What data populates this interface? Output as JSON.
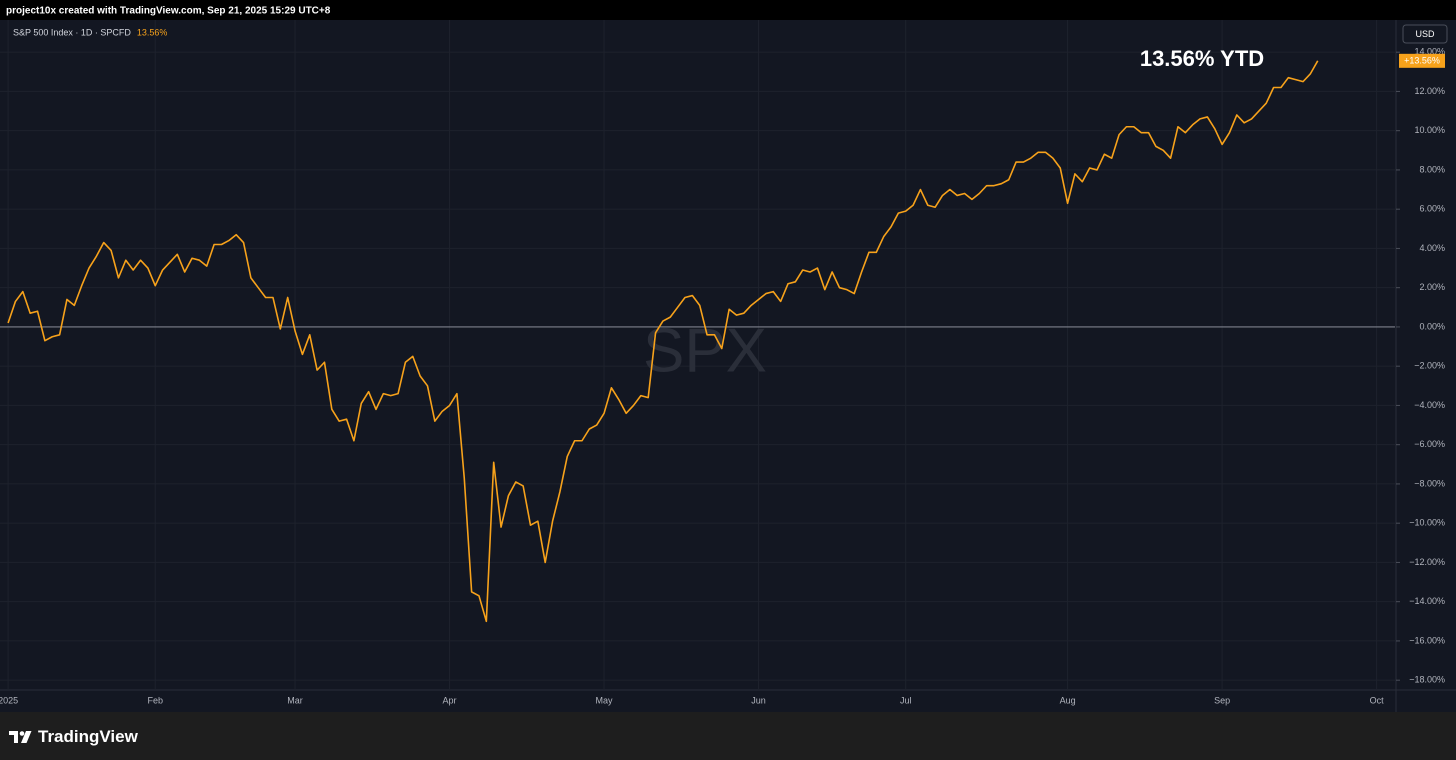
{
  "chart_data": {
    "type": "line",
    "header": "project10x created with TradingView.com, Sep 21, 2025 15:29 UTC+8",
    "legend_value": "13.56%",
    "annotation": "13.56% YTD",
    "watermark": "SPX",
    "currency": "USD",
    "brand": "TradingView",
    "baseline": 0,
    "grid": true,
    "x": [
      0,
      1,
      2,
      3,
      4,
      5,
      6,
      7,
      8,
      9,
      10,
      11,
      12,
      13,
      14,
      15,
      16,
      17,
      18,
      19,
      20,
      21,
      22,
      23,
      24,
      25,
      26,
      27,
      28,
      29,
      30,
      31,
      32,
      33,
      34,
      35,
      36,
      37,
      38,
      39,
      40,
      41,
      42,
      43,
      44,
      45,
      46,
      47,
      48,
      49,
      50,
      51,
      52,
      53,
      54,
      55,
      56,
      57,
      58,
      59,
      60,
      61,
      62,
      63,
      64,
      65,
      66,
      67,
      68,
      69,
      70,
      71,
      72,
      73,
      74,
      75,
      76,
      77,
      78,
      79,
      80,
      81,
      82,
      83,
      84,
      85,
      86,
      87,
      88,
      89,
      90,
      91,
      92,
      93,
      94,
      95,
      96,
      97,
      98,
      99,
      100,
      101,
      102,
      103,
      104,
      105,
      106,
      107,
      108,
      109,
      110,
      111,
      112,
      113,
      114,
      115,
      116,
      117,
      118,
      119,
      120,
      121,
      122,
      123,
      124,
      125,
      126,
      127,
      128,
      129,
      130,
      131,
      132,
      133,
      134,
      135,
      136,
      137,
      138,
      139,
      140,
      141,
      142,
      143,
      144,
      145,
      146,
      147,
      148,
      149,
      150,
      151,
      152,
      153,
      154,
      155,
      156,
      157,
      158,
      159,
      160,
      161,
      162,
      163,
      164,
      165,
      166,
      167,
      168,
      169,
      170,
      171,
      172,
      173,
      174,
      175,
      176,
      177,
      178
    ],
    "series": [
      {
        "name": "S&P 500 Index · 1D · SPCFD",
        "color": "#f7a21b",
        "values": [
          0.2,
          1.3,
          1.8,
          0.7,
          0.8,
          -0.7,
          -0.5,
          -0.4,
          1.4,
          1.1,
          2.1,
          3.0,
          3.6,
          4.3,
          3.9,
          2.5,
          3.4,
          2.9,
          3.4,
          3.0,
          2.1,
          2.9,
          3.3,
          3.7,
          2.8,
          3.5,
          3.4,
          3.1,
          4.2,
          4.2,
          4.4,
          4.7,
          4.3,
          2.5,
          2.0,
          1.5,
          1.5,
          -0.1,
          1.5,
          -0.2,
          -1.4,
          -0.4,
          -2.2,
          -1.8,
          -4.2,
          -4.8,
          -4.7,
          -5.8,
          -3.9,
          -3.3,
          -4.2,
          -3.4,
          -3.5,
          -3.4,
          -1.8,
          -1.5,
          -2.5,
          -3.0,
          -4.8,
          -4.3,
          -4.0,
          -3.4,
          -7.7,
          -13.5,
          -13.7,
          -15.0,
          -6.9,
          -10.2,
          -8.6,
          -7.9,
          -8.1,
          -10.1,
          -9.9,
          -12.0,
          -9.9,
          -8.4,
          -6.6,
          -5.8,
          -5.8,
          -5.2,
          -5.0,
          -4.4,
          -3.1,
          -3.7,
          -4.4,
          -4.0,
          -3.5,
          -3.6,
          -0.3,
          0.3,
          0.5,
          1.0,
          1.5,
          1.6,
          1.1,
          -0.4,
          -0.4,
          -1.1,
          0.9,
          0.6,
          0.7,
          1.1,
          1.4,
          1.7,
          1.8,
          1.3,
          2.2,
          2.3,
          2.9,
          2.8,
          3.0,
          1.9,
          2.8,
          2.0,
          1.9,
          1.7,
          2.8,
          3.8,
          3.8,
          4.6,
          5.1,
          5.8,
          5.9,
          6.2,
          7.0,
          6.2,
          6.1,
          6.7,
          7.0,
          6.7,
          6.8,
          6.5,
          6.8,
          7.2,
          7.2,
          7.3,
          7.5,
          8.4,
          8.4,
          8.6,
          8.9,
          8.9,
          8.6,
          8.1,
          6.3,
          7.8,
          7.4,
          8.1,
          8.0,
          8.8,
          8.6,
          9.8,
          10.2,
          10.2,
          9.9,
          9.9,
          9.2,
          9.0,
          8.6,
          10.2,
          9.9,
          10.3,
          10.6,
          10.7,
          10.1,
          9.3,
          9.9,
          10.8,
          10.4,
          10.6,
          11.0,
          11.4,
          12.2,
          12.2,
          12.7,
          12.6,
          12.5,
          12.9,
          13.56
        ],
        "value_labels": [
          null,
          null,
          null,
          null,
          null,
          null,
          null,
          null,
          null,
          null,
          null,
          null,
          null,
          null,
          null,
          null,
          null,
          null,
          null,
          null,
          null,
          null,
          null,
          null,
          null,
          null,
          null,
          null,
          null,
          null,
          null,
          null,
          null,
          null,
          null,
          null,
          null,
          null,
          null,
          null,
          null,
          null,
          null,
          null,
          null,
          null,
          null,
          null,
          null,
          null,
          null,
          null,
          null,
          null,
          null,
          null,
          null,
          null,
          null,
          null,
          null,
          null,
          null,
          null,
          null,
          null,
          null,
          null,
          null,
          null,
          null,
          null,
          null,
          null,
          null,
          null,
          null,
          null,
          null,
          null,
          null,
          null,
          null,
          null,
          null,
          null,
          null,
          null,
          null,
          null,
          null,
          null,
          null,
          null,
          null,
          null,
          null,
          null,
          null,
          null,
          null,
          null,
          null,
          null,
          null,
          null,
          null,
          null,
          null,
          null,
          null,
          null,
          null,
          null,
          null,
          null,
          null,
          null,
          null,
          null,
          null,
          null,
          null,
          null,
          null,
          null,
          null,
          null,
          null,
          null,
          null,
          null,
          null,
          null,
          null,
          null,
          null,
          null,
          null,
          null,
          null,
          null,
          null,
          null,
          null,
          null,
          null,
          null,
          null,
          null,
          null,
          null,
          null,
          null,
          null,
          null,
          null,
          null,
          null,
          null,
          null,
          null,
          null,
          null,
          null,
          null,
          null,
          null,
          null,
          null,
          null,
          null,
          null,
          null,
          null,
          null,
          null,
          null,
          "+13.56%"
        ]
      }
    ],
    "xlim": [
      -1.1,
      188.5
    ],
    "xticks": [
      {
        "value": 0,
        "label": "2025"
      },
      {
        "value": 20,
        "label": "Feb"
      },
      {
        "value": 39,
        "label": "Mar"
      },
      {
        "value": 60,
        "label": "Apr"
      },
      {
        "value": 81,
        "label": "May"
      },
      {
        "value": 102,
        "label": "Jun"
      },
      {
        "value": 122,
        "label": "Jul"
      },
      {
        "value": 144,
        "label": "Aug"
      },
      {
        "value": 165,
        "label": "Sep"
      },
      {
        "value": 186,
        "label": "Oct"
      }
    ],
    "ylim": [
      -18.5,
      15.64
    ],
    "yticks": [
      {
        "value": 14,
        "label": "14.00%"
      },
      {
        "value": 12,
        "label": "12.00%"
      },
      {
        "value": 10,
        "label": "10.00%"
      },
      {
        "value": 8,
        "label": "8.00%"
      },
      {
        "value": 6,
        "label": "6.00%"
      },
      {
        "value": 4,
        "label": "4.00%"
      },
      {
        "value": 2,
        "label": "2.00%"
      },
      {
        "value": 0,
        "label": "0.00%"
      },
      {
        "value": -2,
        "label": "−2.00%"
      },
      {
        "value": -4,
        "label": "−4.00%"
      },
      {
        "value": -6,
        "label": "−6.00%"
      },
      {
        "value": -8,
        "label": "−8.00%"
      },
      {
        "value": -10,
        "label": "−10.00%"
      },
      {
        "value": -12,
        "label": "−12.00%"
      },
      {
        "value": -14,
        "label": "−14.00%"
      },
      {
        "value": -16,
        "label": "−16.00%"
      },
      {
        "value": -18,
        "label": "−18.00%"
      }
    ]
  }
}
